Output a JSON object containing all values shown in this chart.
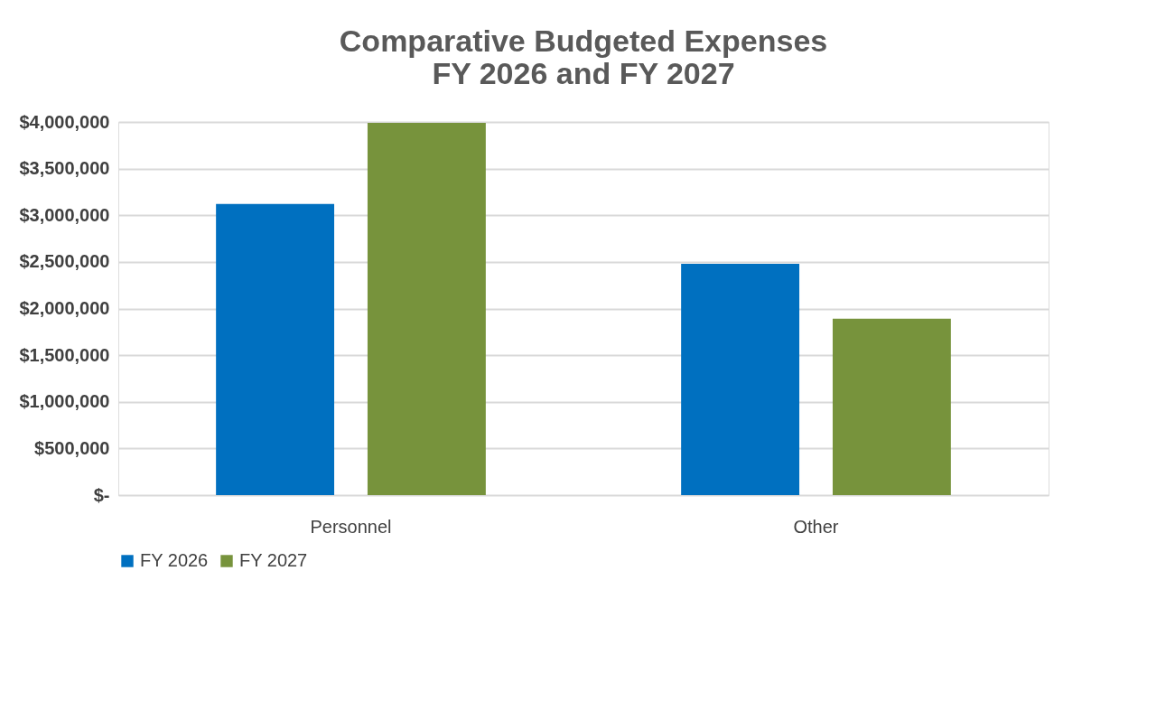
{
  "chart_data": {
    "type": "bar",
    "title": [
      "Comparative Budgeted Expenses",
      "FY 2026 and FY 2027"
    ],
    "categories": [
      "Personnel",
      "Other"
    ],
    "series": [
      {
        "name": "FY 2026",
        "color": "#0070c0",
        "values": [
          3120000,
          2480000
        ]
      },
      {
        "name": "FY 2027",
        "color": "#77933c",
        "values": [
          3990000,
          1890000
        ]
      }
    ],
    "ylim": [
      0,
      4000000
    ],
    "yticks": [
      {
        "value": 0,
        "label": "$-"
      },
      {
        "value": 500000,
        "label": "$500,000"
      },
      {
        "value": 1000000,
        "label": "$1,000,000"
      },
      {
        "value": 1500000,
        "label": "$1,500,000"
      },
      {
        "value": 2000000,
        "label": "$2,000,000"
      },
      {
        "value": 2500000,
        "label": "$2,500,000"
      },
      {
        "value": 3000000,
        "label": "$3,000,000"
      },
      {
        "value": 3500000,
        "label": "$3,500,000"
      },
      {
        "value": 4000000,
        "label": "$4,000,000"
      }
    ],
    "grid": "y",
    "legend": "bottom"
  }
}
